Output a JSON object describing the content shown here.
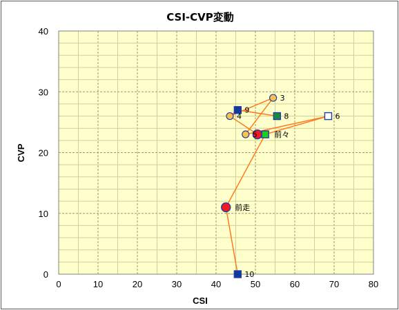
{
  "chart_data": {
    "type": "scatter",
    "title": "CSI-CVP変動",
    "xlabel": "CSI",
    "ylabel": "CVP",
    "xlim": [
      0,
      80
    ],
    "ylim": [
      0,
      40
    ],
    "x_ticks": [
      "0",
      "10",
      "20",
      "30",
      "40",
      "50",
      "60",
      "70",
      "80"
    ],
    "y_ticks": [
      "0",
      "10",
      "20",
      "30",
      "40"
    ],
    "grid": true,
    "colors": {
      "plot_background": "#ffffcc",
      "grid_minor": "#cfcf9a",
      "grid_major": "#9a9a6a",
      "line": "#ff7a1a",
      "marker_edge": "#1f3ea8",
      "race_fill": "#f9c24a",
      "previous_race_fill": "#ee1c1c",
      "two_races_ago_fill": "#19d219",
      "square_fill": "#123a9c",
      "square_alt_fill": "#1a8a3a",
      "open_square_fill": "#ffffff"
    },
    "path_order": [
      "10",
      "前走",
      "前々",
      "6",
      "5",
      "3",
      "4",
      "9",
      "8"
    ],
    "points": [
      {
        "label": "3",
        "x": 54.5,
        "y": 29.0,
        "marker": "circle",
        "fill": "race_fill"
      },
      {
        "label": "4",
        "x": 43.5,
        "y": 26.0,
        "marker": "circle",
        "fill": "race_fill"
      },
      {
        "label": "5",
        "x": 47.5,
        "y": 23.0,
        "marker": "circle",
        "fill": "race_fill"
      },
      {
        "label": "",
        "x": 50.5,
        "y": 23.0,
        "marker": "circle-large",
        "fill": "previous_race_fill"
      },
      {
        "label": "6",
        "x": 68.5,
        "y": 26.0,
        "marker": "square-open",
        "fill": "open_square_fill"
      },
      {
        "label": "8",
        "x": 55.5,
        "y": 26.0,
        "marker": "square",
        "fill": "square_alt_fill"
      },
      {
        "label": "9",
        "x": 45.5,
        "y": 27.0,
        "marker": "square",
        "fill": "square_fill"
      },
      {
        "label": "10",
        "x": 45.5,
        "y": 0.0,
        "marker": "square",
        "fill": "square_fill"
      },
      {
        "label": "前々",
        "x": 52.5,
        "y": 23.0,
        "marker": "square",
        "fill": "two_races_ago_fill"
      },
      {
        "label": "前走",
        "x": 42.5,
        "y": 11.0,
        "marker": "circle-large",
        "fill": "previous_race_fill"
      }
    ]
  }
}
